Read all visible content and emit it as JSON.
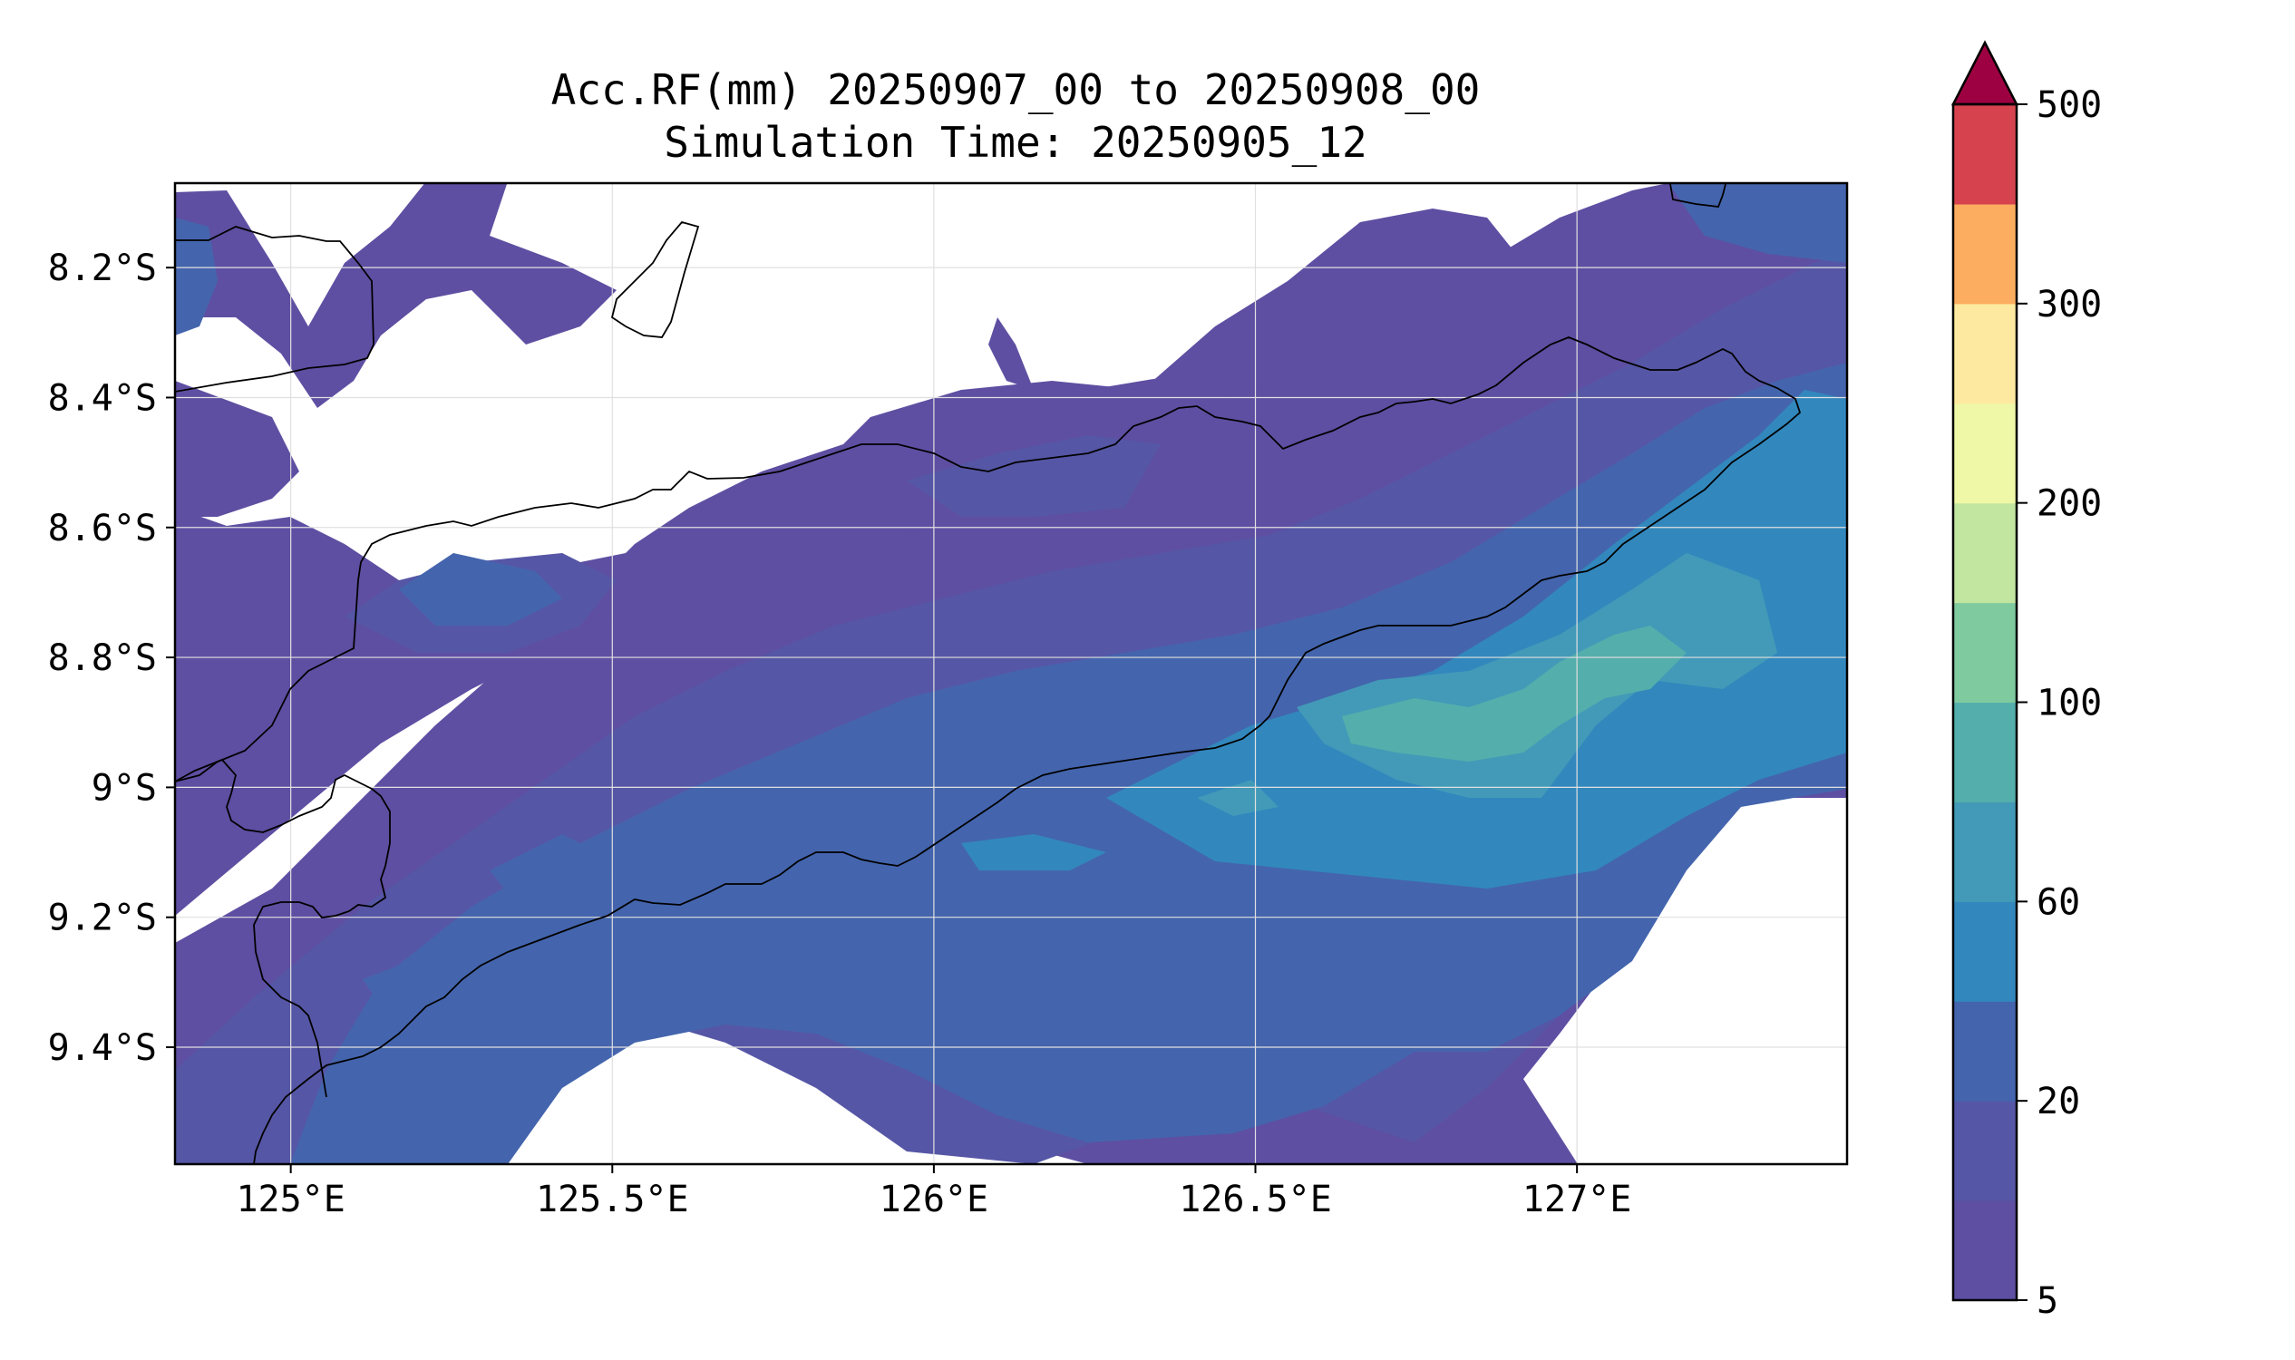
{
  "title": {
    "line1": "Acc.RF(mm) 20250907_00 to 20250908_00",
    "line2": "Simulation Time: 20250905_12"
  },
  "map": {
    "lon_range": [
      124.82,
      127.42
    ],
    "lat_range": [
      -9.58,
      -8.07
    ],
    "x_ticks": [
      {
        "value": 125.0,
        "label": "125°E"
      },
      {
        "value": 125.5,
        "label": "125.5°E"
      },
      {
        "value": 126.0,
        "label": "126°E"
      },
      {
        "value": 126.5,
        "label": "126.5°E"
      },
      {
        "value": 127.0,
        "label": "127°E"
      }
    ],
    "y_ticks": [
      {
        "value": -8.2,
        "label": "8.2°S"
      },
      {
        "value": -8.4,
        "label": "8.4°S"
      },
      {
        "value": -8.6,
        "label": "8.6°S"
      },
      {
        "value": -8.8,
        "label": "8.8°S"
      },
      {
        "value": -9.0,
        "label": "9°S"
      },
      {
        "value": -9.2,
        "label": "9.2°S"
      },
      {
        "value": -9.4,
        "label": "9.4°S"
      }
    ],
    "grid": true
  },
  "colorbar": {
    "levels": [
      5,
      10,
      20,
      40,
      60,
      80,
      100,
      150,
      200,
      250,
      300,
      400,
      500
    ],
    "labels": [
      {
        "value": 5,
        "label": "5"
      },
      {
        "value": 20,
        "label": "20"
      },
      {
        "value": 60,
        "label": "60"
      },
      {
        "value": 100,
        "label": "100"
      },
      {
        "value": 200,
        "label": "200"
      },
      {
        "value": 300,
        "label": "300"
      },
      {
        "value": 500,
        "label": "500"
      }
    ],
    "colors": [
      "#5e4fa2",
      "#5656a6",
      "#4465ad",
      "#3288bd",
      "#429ab8",
      "#54aeab",
      "#7fca9f",
      "#c2e5a0",
      "#eff8a6",
      "#fdeaa0",
      "#fdad60",
      "#d7424f"
    ],
    "extend_color": "#9e0142",
    "extend": "max"
  },
  "colors": {
    "coastline": "#000000",
    "grid": "#e0e0e0"
  }
}
